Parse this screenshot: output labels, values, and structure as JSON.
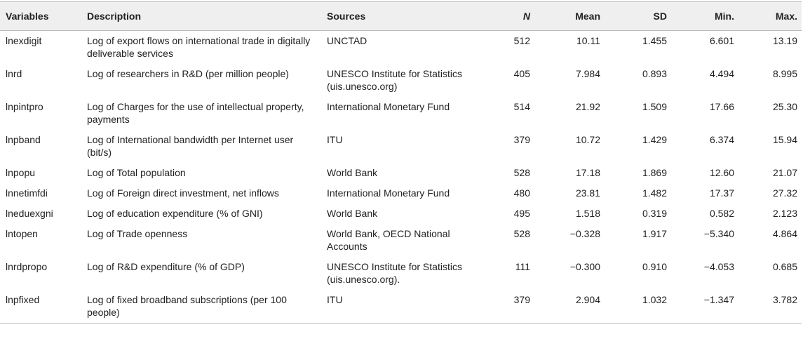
{
  "table": {
    "columns": [
      "Variables",
      "Description",
      "Sources",
      "N",
      "Mean",
      "SD",
      "Min.",
      "Max."
    ],
    "rows": [
      [
        "lnexdigit",
        "Log of export flows on international trade in digitally deliverable services",
        "UNCTAD",
        "512",
        "10.11",
        "1.455",
        "6.601",
        "13.19"
      ],
      [
        "lnrd",
        "Log of researchers in R&D (per million people)",
        "UNESCO Institute for Statistics (uis.unesco.org)",
        "405",
        "7.984",
        "0.893",
        "4.494",
        "8.995"
      ],
      [
        "lnpintpro",
        "Log of Charges for the use of intellectual property, payments",
        "International Monetary Fund",
        "514",
        "21.92",
        "1.509",
        "17.66",
        "25.30"
      ],
      [
        "lnpband",
        "Log of International bandwidth per Internet user (bit/s)",
        "ITU",
        "379",
        "10.72",
        "1.429",
        "6.374",
        "15.94"
      ],
      [
        "lnpopu",
        "Log of Total population",
        "World Bank",
        "528",
        "17.18",
        "1.869",
        "12.60",
        "21.07"
      ],
      [
        "lnnetimfdi",
        "Log of Foreign direct investment, net inflows",
        "International Monetary Fund",
        "480",
        "23.81",
        "1.482",
        "17.37",
        "27.32"
      ],
      [
        "lneduexgni",
        "Log of education expenditure (% of GNI)",
        "World Bank",
        "495",
        "1.518",
        "0.319",
        "0.582",
        "2.123"
      ],
      [
        "lntopen",
        "Log of Trade openness",
        "World Bank, OECD National Accounts",
        "528",
        "−0.328",
        "1.917",
        "−5.340",
        "4.864"
      ],
      [
        "lnrdpropo",
        "Log of R&D expenditure (% of GDP)",
        "UNESCO Institute for Statistics (uis.unesco.org).",
        "111",
        "−0.300",
        "0.910",
        "−4.053",
        "0.685"
      ],
      [
        "lnpfixed",
        "Log of fixed broadband subscriptions (per 100 people)",
        "ITU",
        "379",
        "2.904",
        "1.032",
        "−1.347",
        "3.782"
      ]
    ]
  }
}
